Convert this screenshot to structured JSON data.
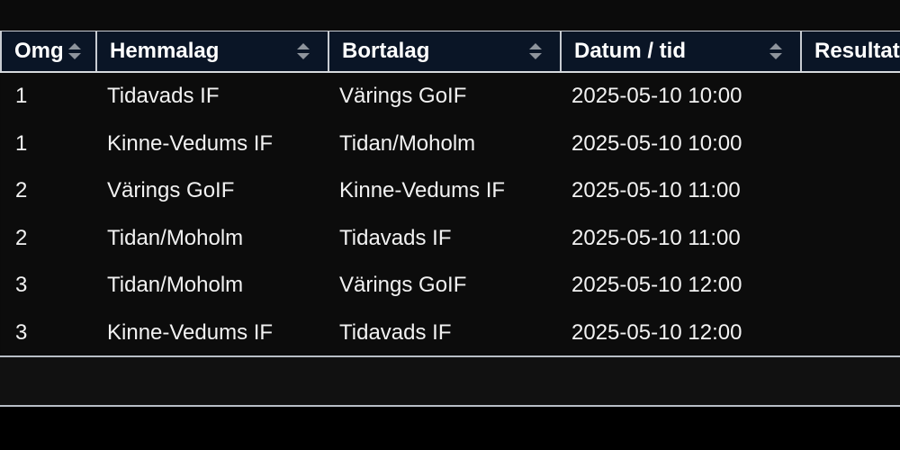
{
  "table": {
    "columns": [
      {
        "key": "omg",
        "label": "Omg",
        "sortable": true
      },
      {
        "key": "hemmalag",
        "label": "Hemmalag",
        "sortable": true
      },
      {
        "key": "bortalag",
        "label": "Bortalag",
        "sortable": true
      },
      {
        "key": "datum_tid",
        "label": "Datum / tid",
        "sortable": true
      },
      {
        "key": "resultat",
        "label": "Resultat",
        "sortable": false
      }
    ],
    "rows": [
      {
        "omg": "1",
        "hemmalag": "Tidavads IF",
        "bortalag": "Värings GoIF",
        "datum_tid": "2025-05-10 10:00",
        "resultat": ""
      },
      {
        "omg": "1",
        "hemmalag": "Kinne-Vedums IF",
        "bortalag": "Tidan/Moholm",
        "datum_tid": "2025-05-10 10:00",
        "resultat": ""
      },
      {
        "omg": "2",
        "hemmalag": "Värings GoIF",
        "bortalag": "Kinne-Vedums IF",
        "datum_tid": "2025-05-10 11:00",
        "resultat": ""
      },
      {
        "omg": "2",
        "hemmalag": "Tidan/Moholm",
        "bortalag": "Tidavads IF",
        "datum_tid": "2025-05-10 11:00",
        "resultat": ""
      },
      {
        "omg": "3",
        "hemmalag": "Tidan/Moholm",
        "bortalag": "Värings GoIF",
        "datum_tid": "2025-05-10 12:00",
        "resultat": ""
      },
      {
        "omg": "3",
        "hemmalag": "Kinne-Vedums IF",
        "bortalag": "Tidavads IF",
        "datum_tid": "2025-05-10 12:00",
        "resultat": ""
      }
    ]
  },
  "colors": {
    "background": "#0b0b0b",
    "header_background": "#0a1526",
    "header_text": "#ffffff",
    "cell_text": "#f2f2f2",
    "border": "#c8ccd2",
    "sort_icon": "#8e949c"
  },
  "icons": {
    "sort": "sort-up-down-icon"
  }
}
